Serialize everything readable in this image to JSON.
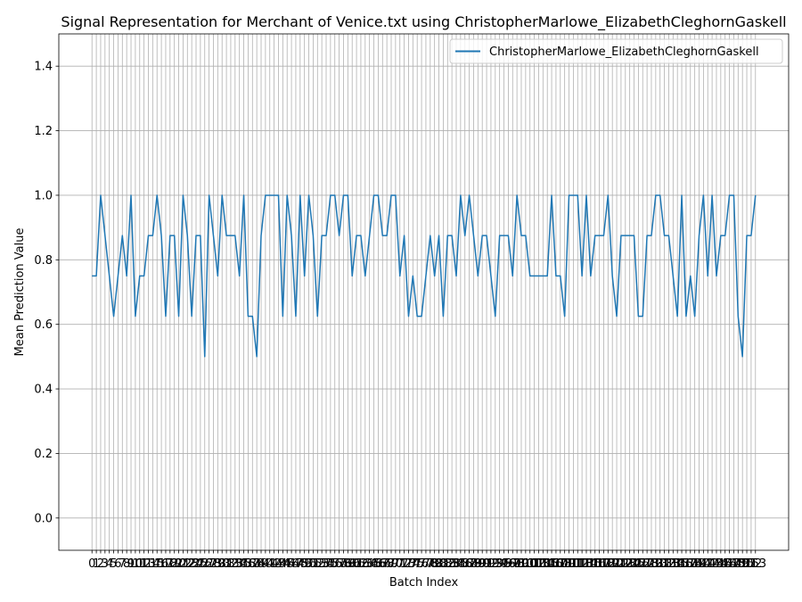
{
  "chart_data": {
    "type": "line",
    "title": "Signal Representation for Merchant of Venice.txt using ChristopherMarlowe_ElizabethCleghornGaskell",
    "xlabel": "Batch Index",
    "ylabel": "Mean Prediction Value",
    "ylim": [
      -0.1,
      1.5
    ],
    "yticks": [
      0.0,
      0.2,
      0.4,
      0.6,
      0.8,
      1.0,
      1.2,
      1.4
    ],
    "ytick_labels": [
      "0.0",
      "0.2",
      "0.4",
      "0.6",
      "0.8",
      "1.0",
      "1.2",
      "1.4"
    ],
    "xlim": [
      -7.65,
      160.65
    ],
    "grid": true,
    "legend_position": "upper right",
    "series": [
      {
        "name": "ChristopherMarlowe_ElizabethCleghornGaskell",
        "color": "#1f77b4",
        "x": [
          0,
          1,
          2,
          3,
          4,
          5,
          6,
          7,
          8,
          9,
          10,
          11,
          12,
          13,
          14,
          15,
          16,
          17,
          18,
          19,
          20,
          21,
          22,
          23,
          24,
          25,
          26,
          27,
          28,
          29,
          30,
          31,
          32,
          33,
          34,
          35,
          36,
          37,
          38,
          39,
          40,
          41,
          42,
          43,
          44,
          45,
          46,
          47,
          48,
          49,
          50,
          51,
          52,
          53,
          54,
          55,
          56,
          57,
          58,
          59,
          60,
          61,
          62,
          63,
          64,
          65,
          66,
          67,
          68,
          69,
          70,
          71,
          72,
          73,
          74,
          75,
          76,
          77,
          78,
          79,
          80,
          81,
          82,
          83,
          84,
          85,
          86,
          87,
          88,
          89,
          90,
          91,
          92,
          93,
          94,
          95,
          96,
          97,
          98,
          99,
          100,
          101,
          102,
          103,
          104,
          105,
          106,
          107,
          108,
          109,
          110,
          111,
          112,
          113,
          114,
          115,
          116,
          117,
          118,
          119,
          120,
          121,
          122,
          123,
          124,
          125,
          126,
          127,
          128,
          129,
          130,
          131,
          132,
          133,
          134,
          135,
          136,
          137,
          138,
          139,
          140,
          141,
          142,
          143,
          144,
          145,
          146,
          147,
          148,
          149,
          150,
          151,
          152,
          153
        ],
        "values": [
          0.75,
          0.75,
          1.0,
          0.875,
          0.75,
          0.625,
          0.75,
          0.875,
          0.75,
          1.0,
          0.625,
          0.75,
          0.75,
          0.875,
          0.875,
          1.0,
          0.875,
          0.625,
          0.875,
          0.875,
          0.625,
          1.0,
          0.875,
          0.625,
          0.875,
          0.875,
          0.5,
          1.0,
          0.875,
          0.75,
          1.0,
          0.875,
          0.875,
          0.875,
          0.75,
          1.0,
          0.625,
          0.625,
          0.5,
          0.875,
          1.0,
          1.0,
          1.0,
          1.0,
          0.625,
          1.0,
          0.875,
          0.625,
          1.0,
          0.75,
          1.0,
          0.875,
          0.625,
          0.875,
          0.875,
          1.0,
          1.0,
          0.875,
          1.0,
          1.0,
          0.75,
          0.875,
          0.875,
          0.75,
          0.875,
          1.0,
          1.0,
          0.875,
          0.875,
          1.0,
          1.0,
          0.75,
          0.875,
          0.625,
          0.75,
          0.625,
          0.625,
          0.75,
          0.875,
          0.75,
          0.875,
          0.625,
          0.875,
          0.875,
          0.75,
          1.0,
          0.875,
          1.0,
          0.875,
          0.75,
          0.875,
          0.875,
          0.75,
          0.625,
          0.875,
          0.875,
          0.875,
          0.75,
          1.0,
          0.875,
          0.875,
          0.75,
          0.75,
          0.75,
          0.75,
          0.75,
          1.0,
          0.75,
          0.75,
          0.625,
          1.0,
          1.0,
          1.0,
          0.75,
          1.0,
          0.75,
          0.875,
          0.875,
          0.875,
          1.0,
          0.75,
          0.625,
          0.875,
          0.875,
          0.875,
          0.875,
          0.625,
          0.625,
          0.875,
          0.875,
          1.0,
          1.0,
          0.875,
          0.875,
          0.75,
          0.625,
          1.0,
          0.625,
          0.75,
          0.625,
          0.875,
          1.0,
          0.75,
          1.0,
          0.75,
          0.875,
          0.875,
          1.0,
          1.0,
          0.625,
          0.5,
          0.875,
          0.875,
          1.0
        ]
      }
    ]
  }
}
